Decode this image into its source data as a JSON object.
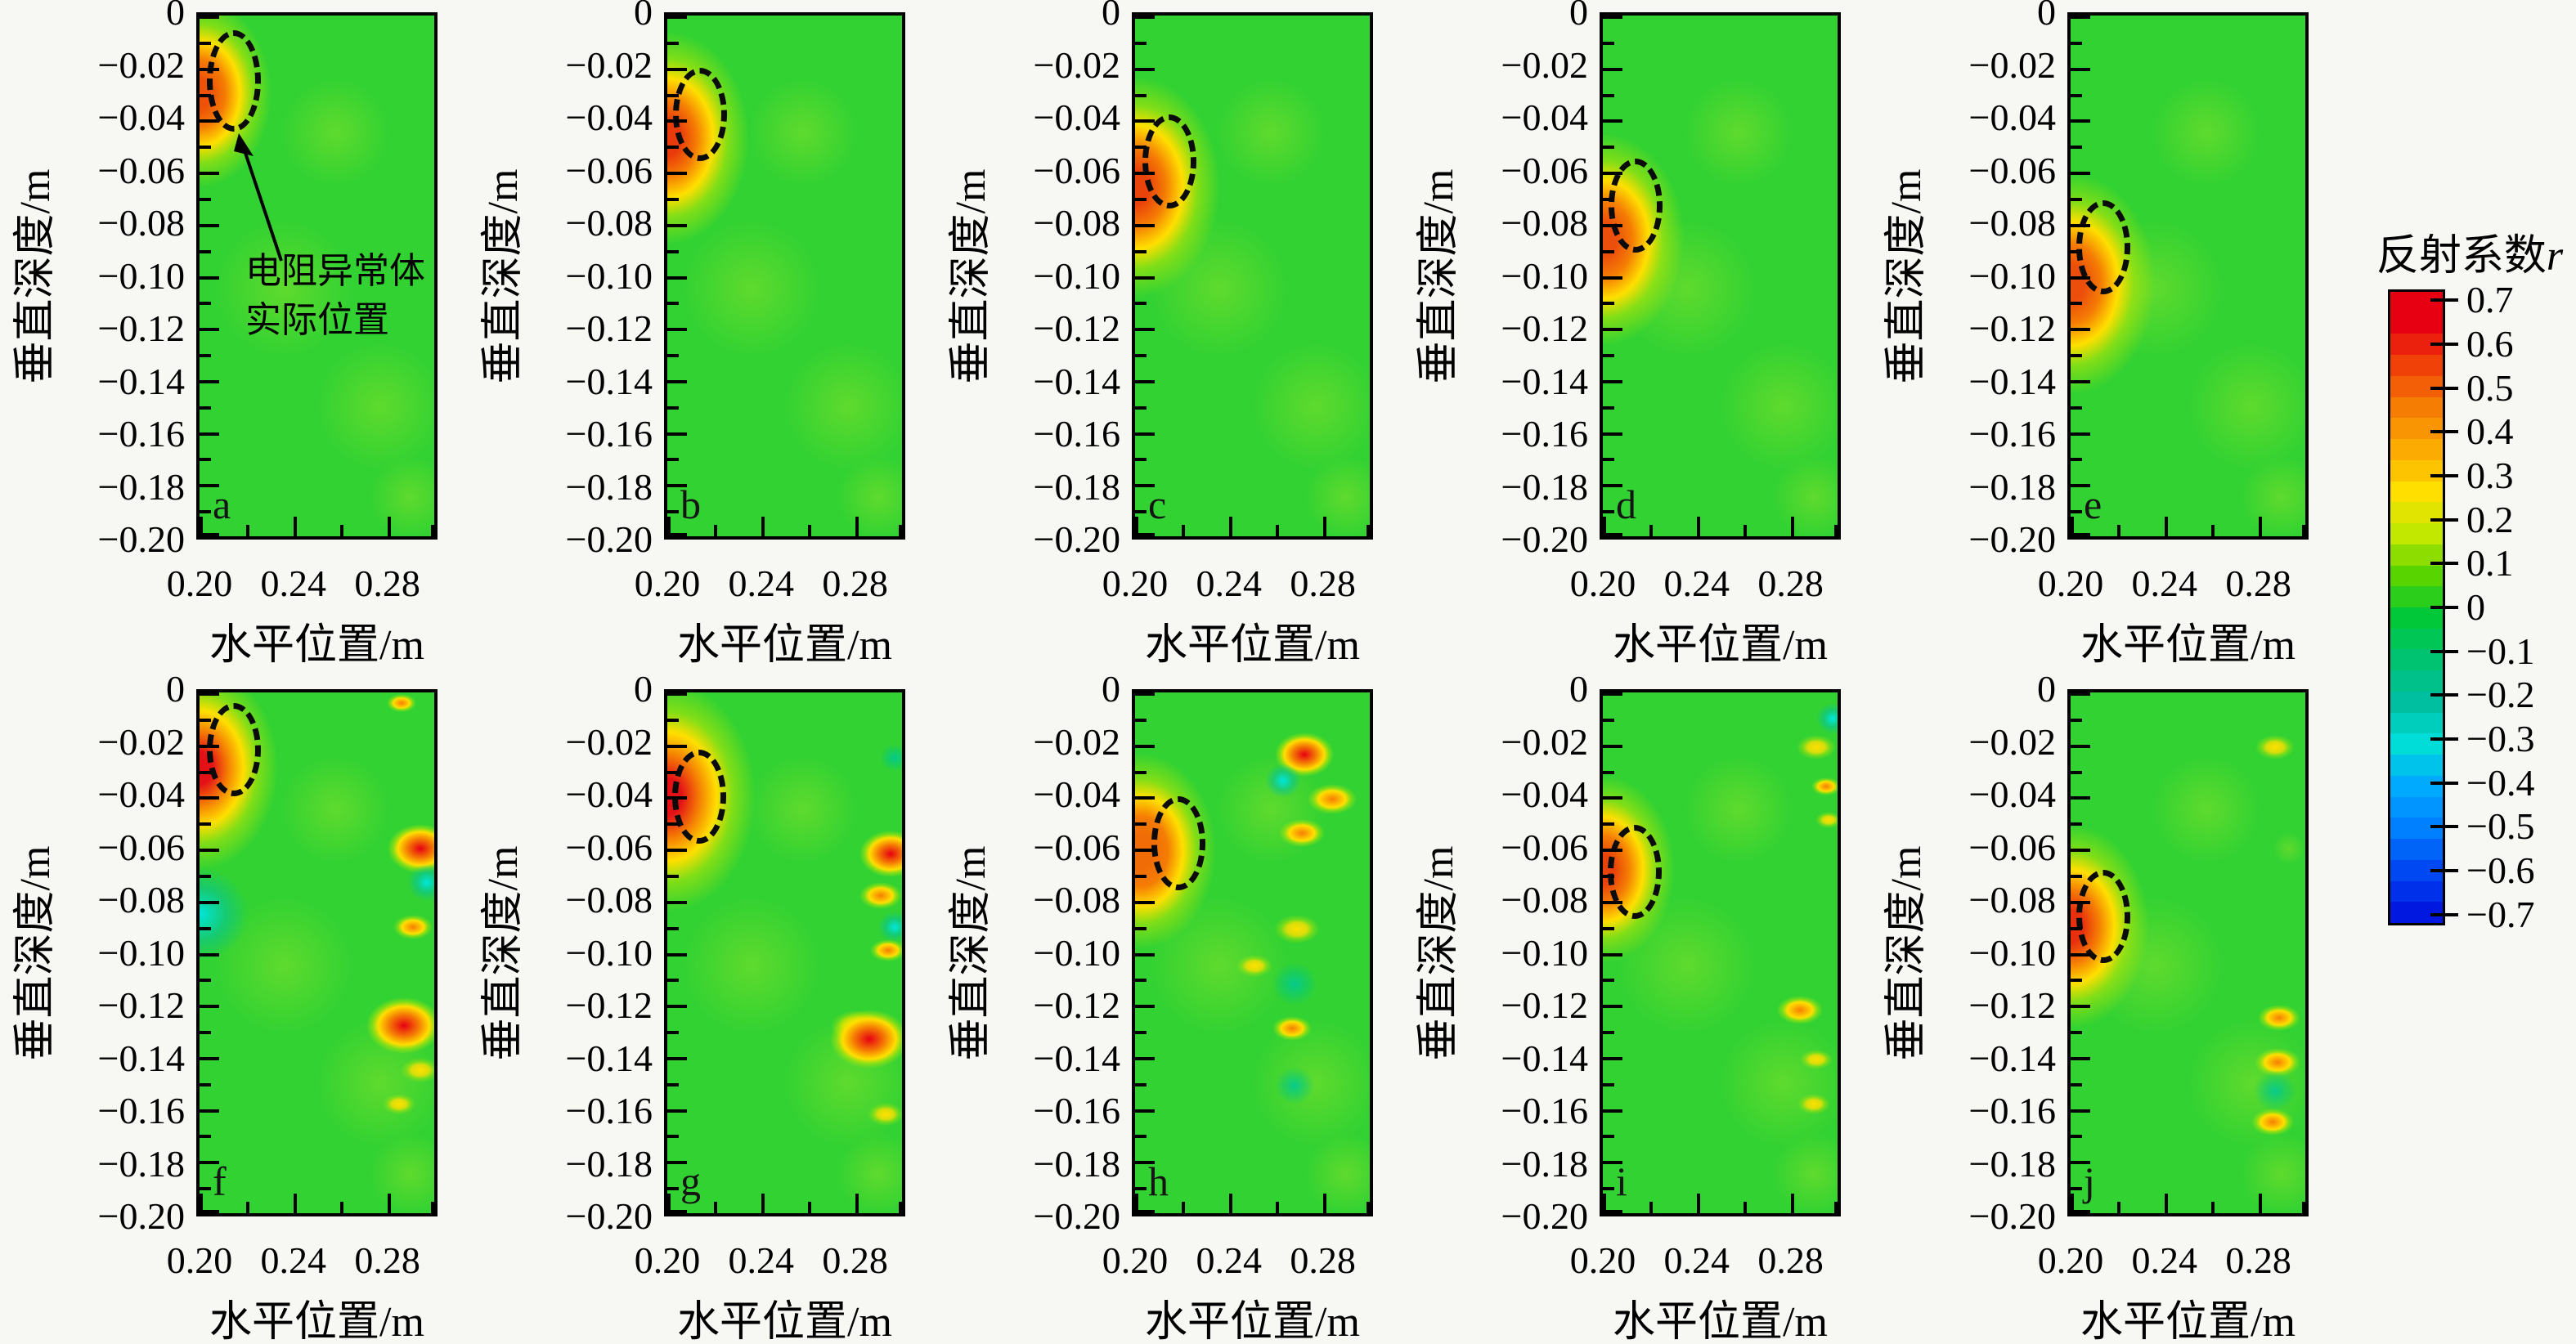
{
  "figure": {
    "background": "#f7f7f4",
    "xlabel": "水平位置/m",
    "ylabel": "垂直深度/m",
    "x_tick_labels": [
      "0.20",
      "0.24",
      "0.28"
    ],
    "y_tick_labels": [
      "0",
      "−0.02",
      "−0.04",
      "−0.06",
      "−0.08",
      "−0.10",
      "−0.12",
      "−0.14",
      "−0.16",
      "−0.18",
      "−0.20"
    ],
    "annotation": {
      "line1": "电阻异常体",
      "line2": "实际位置"
    },
    "colorbar": {
      "title": "反射系数",
      "title_var": "r",
      "tick_labels": [
        "0.7",
        "0.6",
        "0.5",
        "0.4",
        "0.3",
        "0.2",
        "0.1",
        "0",
        "−0.1",
        "−0.2",
        "−0.3",
        "−0.4",
        "−0.5",
        "−0.6",
        "−0.7"
      ]
    }
  },
  "chart_data": {
    "type": "heatmap",
    "grid": {
      "rows": 2,
      "cols": 5
    },
    "x_range_m": [
      0.2,
      0.3
    ],
    "y_range_m": [
      -0.2,
      0
    ],
    "x_ticks": [
      0.2,
      0.24,
      0.28
    ],
    "y_ticks": [
      0,
      -0.02,
      -0.04,
      -0.06,
      -0.08,
      -0.1,
      -0.12,
      -0.14,
      -0.16,
      -0.18,
      -0.2
    ],
    "xlabel": "水平位置/m",
    "ylabel": "垂直深度/m",
    "colorbar_label": "反射系数r",
    "colorbar_range": [
      -0.7,
      0.7
    ],
    "colorbar_stops": [
      "#e60012",
      "#ef4108",
      "#f67d04",
      "#fbab02",
      "#ffdf00",
      "#c2e800",
      "#58d400",
      "#00c838",
      "#00c371",
      "#00bfa0",
      "#00dcd8",
      "#00aaff",
      "#0080ff",
      "#0048f2",
      "#0018e0"
    ],
    "background_value": 0.05,
    "background_color": "#32d232",
    "panels": [
      {
        "label": "a",
        "annotated": true,
        "peak_r": 0.5,
        "core": "#ee5208",
        "response": {
          "x": 0.2,
          "y": -0.03,
          "r": 88
        },
        "actual": {
          "x": 0.2145,
          "y": -0.025,
          "rx": 0.0115,
          "ry": 0.0195
        },
        "artifacts": []
      },
      {
        "label": "b",
        "peak_r": 0.6,
        "core": "#e93a0b",
        "response": {
          "x": 0.2,
          "y": -0.047,
          "r": 100
        },
        "actual": {
          "x": 0.214,
          "y": -0.038,
          "rx": 0.0115,
          "ry": 0.018
        },
        "artifacts": []
      },
      {
        "label": "c",
        "peak_r": 0.6,
        "core": "#ea420b",
        "response": {
          "x": 0.2,
          "y": -0.066,
          "r": 104
        },
        "actual": {
          "x": 0.2145,
          "y": -0.056,
          "rx": 0.0115,
          "ry": 0.018
        },
        "artifacts": []
      },
      {
        "label": "d",
        "peak_r": 0.55,
        "core": "#ec4e0b",
        "response": {
          "x": 0.2,
          "y": -0.086,
          "r": 100
        },
        "actual": {
          "x": 0.214,
          "y": -0.073,
          "rx": 0.0115,
          "ry": 0.018
        },
        "artifacts": []
      },
      {
        "label": "e",
        "peak_r": 0.55,
        "core": "#ec4e0b",
        "response": {
          "x": 0.2,
          "y": -0.103,
          "r": 104
        },
        "actual": {
          "x": 0.214,
          "y": -0.089,
          "rx": 0.0115,
          "ry": 0.018
        },
        "artifacts": []
      },
      {
        "label": "f",
        "peak_r": 0.7,
        "core": "#e41117",
        "response": {
          "x": 0.2,
          "y": -0.029,
          "r": 96
        },
        "actual": {
          "x": 0.2145,
          "y": -0.022,
          "rx": 0.0115,
          "ry": 0.018
        },
        "artifacts": [
          {
            "x": 0.2,
            "y": -0.085,
            "r": 60,
            "t": "cyan"
          },
          {
            "x": 0.286,
            "y": -0.004,
            "r": 18,
            "t": "orange"
          },
          {
            "x": 0.294,
            "y": -0.06,
            "r": 40,
            "t": "red"
          },
          {
            "x": 0.297,
            "y": -0.073,
            "r": 24,
            "t": "cyan"
          },
          {
            "x": 0.291,
            "y": -0.09,
            "r": 24,
            "t": "orange"
          },
          {
            "x": 0.287,
            "y": -0.128,
            "r": 46,
            "t": "red"
          },
          {
            "x": 0.294,
            "y": -0.145,
            "r": 24,
            "t": "yellow"
          },
          {
            "x": 0.285,
            "y": -0.158,
            "r": 20,
            "t": "yellow"
          }
        ]
      },
      {
        "label": "g",
        "peak_r": 0.7,
        "core": "#e41117",
        "response": {
          "x": 0.2,
          "y": -0.04,
          "r": 108
        },
        "actual": {
          "x": 0.2135,
          "y": -0.04,
          "rx": 0.0115,
          "ry": 0.018
        },
        "artifacts": [
          {
            "x": 0.297,
            "y": -0.025,
            "r": 18,
            "t": "teal"
          },
          {
            "x": 0.295,
            "y": -0.062,
            "r": 38,
            "t": "red"
          },
          {
            "x": 0.291,
            "y": -0.078,
            "r": 26,
            "t": "orange"
          },
          {
            "x": 0.297,
            "y": -0.09,
            "r": 20,
            "t": "cyan"
          },
          {
            "x": 0.294,
            "y": -0.099,
            "r": 22,
            "t": "orange"
          },
          {
            "x": 0.28,
            "y": -0.128,
            "r": 30,
            "t": "yellow"
          },
          {
            "x": 0.286,
            "y": -0.133,
            "r": 48,
            "t": "red"
          },
          {
            "x": 0.293,
            "y": -0.162,
            "r": 22,
            "t": "yellow"
          }
        ]
      },
      {
        "label": "h",
        "peak_r": 0.5,
        "core": "#f06c06",
        "response": {
          "x": 0.2025,
          "y": -0.061,
          "r": 92
        },
        "actual": {
          "x": 0.2185,
          "y": -0.058,
          "rx": 0.0115,
          "ry": 0.018
        },
        "artifacts": [
          {
            "x": 0.272,
            "y": -0.024,
            "r": 36,
            "t": "red"
          },
          {
            "x": 0.263,
            "y": -0.034,
            "r": 22,
            "t": "cyan"
          },
          {
            "x": 0.284,
            "y": -0.041,
            "r": 30,
            "t": "orange"
          },
          {
            "x": 0.271,
            "y": -0.054,
            "r": 28,
            "t": "orange"
          },
          {
            "x": 0.269,
            "y": -0.091,
            "r": 28,
            "t": "yellow"
          },
          {
            "x": 0.251,
            "y": -0.105,
            "r": 22,
            "t": "yellow"
          },
          {
            "x": 0.268,
            "y": -0.112,
            "r": 28,
            "t": "teal"
          },
          {
            "x": 0.267,
            "y": -0.129,
            "r": 24,
            "t": "orange"
          },
          {
            "x": 0.268,
            "y": -0.151,
            "r": 24,
            "t": "teal"
          }
        ]
      },
      {
        "label": "i",
        "peak_r": 0.6,
        "core": "#ea420b",
        "response": {
          "x": 0.2,
          "y": -0.068,
          "r": 88
        },
        "actual": {
          "x": 0.2135,
          "y": -0.069,
          "rx": 0.0115,
          "ry": 0.018
        },
        "artifacts": [
          {
            "x": 0.298,
            "y": -0.01,
            "r": 20,
            "t": "cyan"
          },
          {
            "x": 0.291,
            "y": -0.021,
            "r": 24,
            "t": "yellow"
          },
          {
            "x": 0.295,
            "y": -0.036,
            "r": 18,
            "t": "orange"
          },
          {
            "x": 0.296,
            "y": -0.049,
            "r": 16,
            "t": "yellow"
          },
          {
            "x": 0.284,
            "y": -0.122,
            "r": 28,
            "t": "orange"
          },
          {
            "x": 0.291,
            "y": -0.141,
            "r": 20,
            "t": "yellow"
          },
          {
            "x": 0.29,
            "y": -0.158,
            "r": 20,
            "t": "yellow"
          }
        ]
      },
      {
        "label": "j",
        "peak_r": 0.6,
        "core": "#e8300e",
        "response": {
          "x": 0.2,
          "y": -0.09,
          "r": 96
        },
        "actual": {
          "x": 0.214,
          "y": -0.086,
          "rx": 0.0115,
          "ry": 0.018
        },
        "artifacts": [
          {
            "x": 0.287,
            "y": -0.021,
            "r": 24,
            "t": "yellow"
          },
          {
            "x": 0.293,
            "y": -0.06,
            "r": 20,
            "t": "light"
          },
          {
            "x": 0.289,
            "y": -0.125,
            "r": 26,
            "t": "orange"
          },
          {
            "x": 0.288,
            "y": -0.142,
            "r": 28,
            "t": "orange"
          },
          {
            "x": 0.287,
            "y": -0.153,
            "r": 26,
            "t": "teal"
          },
          {
            "x": 0.286,
            "y": -0.165,
            "r": 26,
            "t": "orange"
          }
        ]
      }
    ]
  }
}
